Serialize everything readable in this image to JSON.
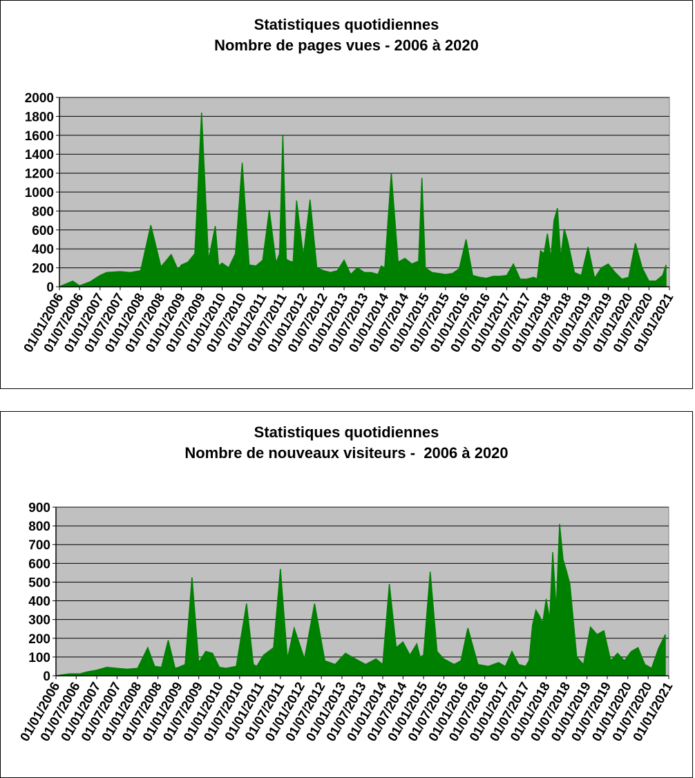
{
  "chart_data": [
    {
      "type": "area",
      "title": "Statistiques quotidiennes",
      "subtitle": "Nombre de pages vues - 2006 à 2020",
      "xlabel": "",
      "ylabel": "",
      "xlim": [
        "01/01/2006",
        "01/01/2021"
      ],
      "ylim": [
        0,
        2000
      ],
      "yticks": [
        0,
        200,
        400,
        600,
        800,
        1000,
        1200,
        1400,
        1600,
        1800,
        2000
      ],
      "xtick_labels": [
        "01/01/2006",
        "01/07/2006",
        "01/01/2007",
        "01/07/2007",
        "01/01/2008",
        "01/07/2008",
        "01/01/2009",
        "01/07/2009",
        "01/01/2010",
        "01/07/2010",
        "01/01/2011",
        "01/07/2011",
        "01/01/2012",
        "01/07/2012",
        "01/01/2013",
        "01/07/2013",
        "01/01/2014",
        "01/07/2014",
        "01/01/2015",
        "01/07/2015",
        "01/01/2016",
        "01/07/2016",
        "01/01/2017",
        "01/07/2017",
        "01/01/2018",
        "01/07/2018",
        "01/01/2019",
        "01/07/2019",
        "01/01/2020",
        "01/07/2020",
        "01/01/2021"
      ],
      "grid": true,
      "series_color": "#008000",
      "plot_bg": "#c0c0c0",
      "series": [
        {
          "x": [
            "01/01/2006",
            "01/05/2006",
            "01/07/2006",
            "01/10/2006",
            "01/01/2007",
            "01/03/2007",
            "01/07/2007",
            "01/10/2007",
            "01/01/2008",
            "01/04/2008",
            "01/07/2008",
            "01/10/2008",
            "01/12/2008",
            "01/01/2009",
            "01/03/2009",
            "01/05/2009",
            "01/07/2009",
            "01/09/2009",
            "01/11/2009",
            "01/12/2009",
            "01/01/2010",
            "01/03/2010",
            "01/05/2010",
            "01/07/2010",
            "01/09/2010",
            "01/11/2010",
            "01/12/2010",
            "01/01/2011",
            "01/03/2011",
            "01/05/2011",
            "01/06/2011",
            "01/07/2011",
            "01/08/2011",
            "01/09/2011",
            "01/10/2011",
            "01/11/2011",
            "01/01/2012",
            "01/03/2012",
            "01/05/2012",
            "01/07/2012",
            "01/09/2012",
            "01/11/2012",
            "01/01/2013",
            "01/03/2013",
            "01/05/2013",
            "01/07/2013",
            "01/09/2013",
            "01/11/2013",
            "01/12/2013",
            "01/01/2014",
            "01/03/2014",
            "01/05/2014",
            "01/07/2014",
            "01/09/2014",
            "01/11/2014",
            "01/12/2014",
            "01/01/2015",
            "01/03/2015",
            "01/05/2015",
            "01/07/2015",
            "01/09/2015",
            "01/11/2015",
            "01/01/2016",
            "01/03/2016",
            "01/05/2016",
            "01/07/2016",
            "01/09/2016",
            "01/11/2016",
            "01/01/2017",
            "01/03/2017",
            "01/05/2017",
            "01/07/2017",
            "01/09/2017",
            "01/10/2017",
            "01/11/2017",
            "01/12/2017",
            "01/01/2018",
            "01/02/2018",
            "01/03/2018",
            "01/04/2018",
            "01/05/2018",
            "01/06/2018",
            "01/07/2018",
            "01/09/2018",
            "01/11/2018",
            "01/01/2019",
            "01/03/2019",
            "01/05/2019",
            "01/07/2019",
            "01/09/2019",
            "01/11/2019",
            "01/01/2020",
            "01/03/2020",
            "01/05/2020",
            "01/07/2020",
            "01/09/2020",
            "01/11/2020",
            "01/12/2020"
          ],
          "y": [
            0,
            60,
            10,
            50,
            120,
            150,
            160,
            150,
            170,
            650,
            210,
            340,
            180,
            230,
            260,
            350,
            1840,
            280,
            640,
            220,
            250,
            200,
            350,
            1310,
            230,
            220,
            250,
            280,
            810,
            250,
            350,
            1600,
            290,
            270,
            260,
            910,
            320,
            920,
            200,
            170,
            150,
            170,
            280,
            130,
            200,
            150,
            150,
            130,
            220,
            200,
            1200,
            260,
            300,
            240,
            270,
            1150,
            200,
            150,
            140,
            130,
            140,
            190,
            500,
            120,
            100,
            90,
            110,
            110,
            120,
            240,
            80,
            80,
            100,
            80,
            380,
            350,
            560,
            300,
            700,
            830,
            300,
            610,
            490,
            150,
            120,
            420,
            90,
            200,
            240,
            150,
            80,
            100,
            460,
            200,
            60,
            60,
            120,
            230
          ]
        }
      ]
    },
    {
      "type": "area",
      "title": "Statistiques quotidiennes",
      "subtitle": "Nombre de nouveaux visiteurs -  2006 à 2020",
      "xlabel": "",
      "ylabel": "",
      "xlim": [
        "01/01/2006",
        "01/01/2021"
      ],
      "ylim": [
        0,
        900
      ],
      "yticks": [
        0,
        100,
        200,
        300,
        400,
        500,
        600,
        700,
        800,
        900
      ],
      "xtick_labels": [
        "01/01/2006",
        "01/07/2006",
        "01/01/2007",
        "01/07/2007",
        "01/01/2008",
        "01/07/2008",
        "01/01/2009",
        "01/07/2009",
        "01/01/2010",
        "01/07/2010",
        "01/01/2011",
        "01/07/2011",
        "01/01/2012",
        "01/07/2012",
        "01/01/2013",
        "01/07/2013",
        "01/01/2014",
        "01/07/2014",
        "01/01/2015",
        "01/07/2015",
        "01/01/2016",
        "01/07/2016",
        "01/01/2017",
        "01/07/2017",
        "01/01/2018",
        "01/07/2018",
        "01/01/2019",
        "01/07/2019",
        "01/01/2020",
        "01/07/2020",
        "01/01/2021"
      ],
      "grid": true,
      "series_color": "#008000",
      "plot_bg": "#c0c0c0",
      "series": [
        {
          "x": [
            "01/01/2006",
            "01/05/2006",
            "01/08/2006",
            "01/10/2006",
            "01/01/2007",
            "01/04/2007",
            "01/07/2007",
            "01/10/2007",
            "01/01/2008",
            "01/04/2008",
            "01/06/2008",
            "01/08/2008",
            "01/10/2008",
            "01/12/2008",
            "01/01/2009",
            "01/03/2009",
            "01/05/2009",
            "01/07/2009",
            "01/09/2009",
            "01/11/2009",
            "01/01/2010",
            "01/03/2010",
            "01/06/2010",
            "01/09/2010",
            "01/11/2010",
            "01/12/2010",
            "01/02/2011",
            "01/05/2011",
            "01/07/2011",
            "01/09/2011",
            "01/11/2011",
            "01/02/2012",
            "01/05/2012",
            "01/08/2012",
            "01/11/2012",
            "01/02/2013",
            "01/05/2013",
            "01/08/2013",
            "01/11/2013",
            "01/01/2014",
            "01/03/2014",
            "01/05/2014",
            "01/07/2014",
            "01/09/2014",
            "01/11/2014",
            "01/12/2014",
            "01/01/2015",
            "01/03/2015",
            "01/05/2015",
            "01/07/2015",
            "01/10/2015",
            "01/12/2015",
            "01/02/2016",
            "01/05/2016",
            "01/08/2016",
            "01/11/2016",
            "01/01/2017",
            "01/03/2017",
            "01/05/2017",
            "01/07/2017",
            "01/08/2017",
            "01/09/2017",
            "01/10/2017",
            "01/11/2017",
            "01/12/2017",
            "01/01/2018",
            "01/02/2018",
            "01/03/2018",
            "01/04/2018",
            "01/05/2018",
            "01/06/2018",
            "01/07/2018",
            "01/08/2018",
            "01/10/2018",
            "01/12/2018",
            "01/02/2019",
            "01/04/2019",
            "01/06/2019",
            "01/08/2019",
            "01/10/2019",
            "01/12/2019",
            "01/02/2020",
            "01/04/2020",
            "01/06/2020",
            "01/08/2020",
            "01/10/2020",
            "01/12/2020"
          ],
          "y": [
            0,
            10,
            10,
            20,
            30,
            45,
            40,
            35,
            40,
            150,
            50,
            45,
            190,
            40,
            45,
            60,
            525,
            70,
            130,
            120,
            45,
            40,
            50,
            385,
            60,
            50,
            110,
            150,
            570,
            90,
            255,
            90,
            385,
            80,
            60,
            120,
            90,
            60,
            90,
            60,
            490,
            150,
            180,
            110,
            170,
            100,
            110,
            555,
            130,
            90,
            60,
            80,
            255,
            60,
            50,
            70,
            50,
            130,
            60,
            50,
            80,
            270,
            350,
            320,
            280,
            410,
            300,
            660,
            350,
            810,
            620,
            560,
            490,
            100,
            60,
            260,
            220,
            240,
            80,
            120,
            80,
            130,
            150,
            60,
            40,
            145,
            220
          ]
        }
      ]
    }
  ]
}
